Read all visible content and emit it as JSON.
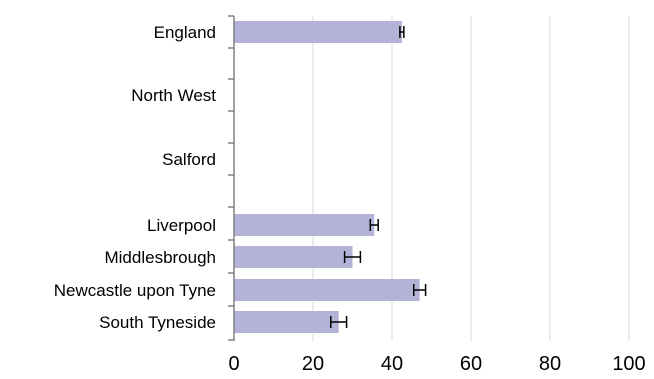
{
  "chart_data": {
    "type": "bar",
    "orientation": "horizontal",
    "categories": [
      "England",
      "North West",
      "Salford",
      "Liverpool",
      "Middlesbrough",
      "Newcastle upon Tyne",
      "South Tyneside"
    ],
    "values": [
      42.5,
      null,
      null,
      35.5,
      30,
      47,
      26.5
    ],
    "error_low": [
      42,
      null,
      null,
      34.5,
      28,
      45.5,
      24.5
    ],
    "error_high": [
      43,
      null,
      null,
      36.5,
      32,
      48.5,
      28.5
    ],
    "xlim": [
      0,
      100
    ],
    "x_ticks": [
      0,
      20,
      40,
      60,
      80,
      100
    ],
    "grid": true,
    "title": "",
    "xlabel": "",
    "ylabel": "",
    "bar_color": "#b3b3d7",
    "grid_color": "#d9d9d9",
    "axis_color": "#808080"
  }
}
